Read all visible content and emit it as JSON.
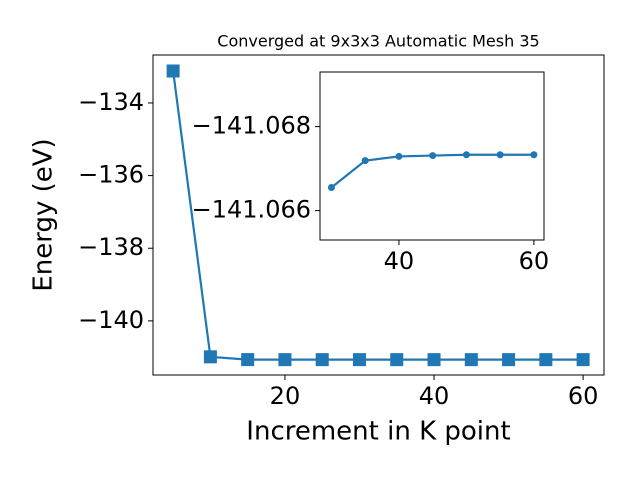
{
  "chart_data": [
    {
      "type": "line",
      "title": "Converged at 9x3x3 Automatic Mesh 35",
      "xlabel": "Increment in K point",
      "ylabel": "Energy (eV)",
      "x": [
        5,
        10,
        15,
        20,
        25,
        30,
        35,
        40,
        45,
        50,
        55,
        60
      ],
      "series": [
        {
          "color": "#1f77b4",
          "marker": "square",
          "values": [
            -133.12,
            -140.99,
            -141.066,
            -141.067,
            -141.067,
            -141.067,
            -141.067,
            -141.067,
            -141.067,
            -141.067,
            -141.067,
            -141.067
          ]
        }
      ],
      "xlim": [
        2.3,
        62.8
      ],
      "xticks": [
        20,
        40,
        60
      ],
      "ylim": [
        -141.49,
        -132.68
      ],
      "yticks": [
        {
          "value": -134,
          "label": "−134"
        },
        {
          "value": -136,
          "label": "−136"
        },
        {
          "value": -138,
          "label": "−138"
        },
        {
          "value": -140,
          "label": "−140"
        }
      ]
    },
    {
      "type": "line",
      "x": [
        30,
        35,
        40,
        45,
        50,
        55,
        60
      ],
      "series": [
        {
          "color": "#1f77b4",
          "marker": "circle",
          "values": [
            -141.06655,
            -141.06719,
            -141.06729,
            -141.06731,
            -141.06733,
            -141.06733,
            -141.06733
          ]
        }
      ],
      "xlim": [
        28.3,
        61.5
      ],
      "xticks": [
        40,
        60
      ],
      "ylim": [
        -141.0653,
        -141.0693
      ],
      "yticks": [
        {
          "value": -141.068,
          "label": "−141.068"
        },
        {
          "value": -141.066,
          "label": "−141.066"
        }
      ]
    }
  ]
}
